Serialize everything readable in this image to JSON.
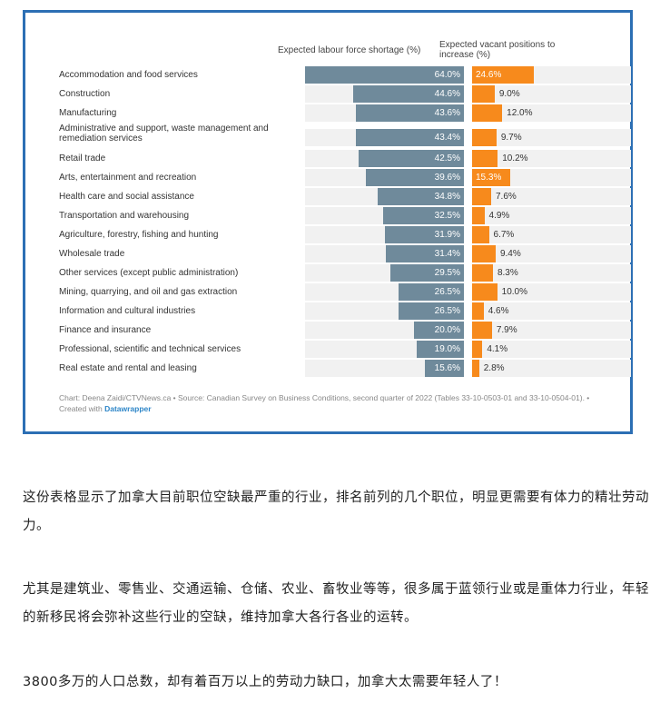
{
  "chart_data": {
    "type": "bar",
    "column_headers": {
      "shortage": "Expected labour force shortage (%)",
      "vacant": "Expected vacant positions to increase (%)"
    },
    "categories": [
      "Accommodation and food services",
      "Construction",
      "Manufacturing",
      "Administrative and support, waste management and remediation services",
      "Retail trade",
      "Arts, entertainment and recreation",
      "Health care and social assistance",
      "Transportation and warehousing",
      "Agriculture, forestry, fishing and hunting",
      "Wholesale trade",
      "Other services (except public administration)",
      "Mining, quarrying, and oil and gas extraction",
      "Information and cultural industries",
      "Finance and insurance",
      "Professional, scientific and technical services",
      "Real estate and rental and leasing"
    ],
    "series": [
      {
        "name": "Expected labour force shortage (%)",
        "values": [
          64.0,
          44.6,
          43.6,
          43.4,
          42.5,
          39.6,
          34.8,
          32.5,
          31.9,
          31.4,
          29.5,
          26.5,
          26.5,
          20.0,
          19.0,
          15.6
        ],
        "color": "#6f8a9b"
      },
      {
        "name": "Expected vacant positions to increase (%)",
        "values": [
          24.6,
          9.0,
          12.0,
          9.7,
          10.2,
          15.3,
          7.6,
          4.9,
          6.7,
          9.4,
          8.3,
          10.0,
          4.6,
          7.9,
          4.1,
          2.8
        ],
        "color": "#f78a1c"
      }
    ],
    "xlim": [
      0,
      64
    ]
  },
  "footer": {
    "text": "Chart: Deena Zaidi/CTVNews.ca • Source: Canadian Survey on Business Conditions, second quarter of 2022 (Tables 33-10-0503-01 and 33-10-0504-01). • Created with ",
    "link": "Datawrapper"
  },
  "paragraphs": [
    "这份表格显示了加拿大目前职位空缺最严重的行业，排名前列的几个职位，明显更需要有体力的精壮劳动力。",
    "尤其是建筑业、零售业、交通运输、仓储、农业、畜牧业等等，很多属于蓝领行业或是重体力行业，年轻的新移民将会弥补这些行业的空缺，维持加拿大各行各业的运转。",
    "3800多万的人口总数，却有着百万以上的劳动力缺口，加拿大太需要年轻人了！"
  ]
}
